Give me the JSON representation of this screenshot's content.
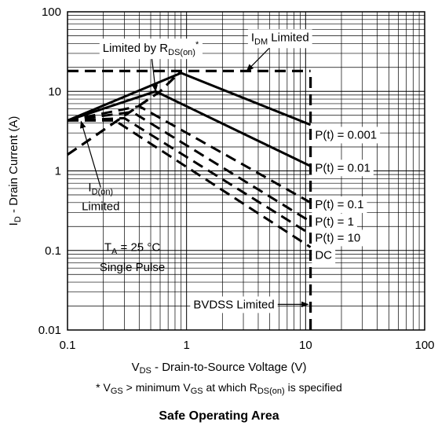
{
  "chart_data": {
    "type": "line",
    "title": "Safe Operating Area",
    "xlabel": {
      "main": "V",
      "sub": "DS",
      "rest": " - Drain-to-Source Voltage (V)"
    },
    "ylabel": {
      "main": "I",
      "sub": "D",
      "rest": " - Drain Current (A)"
    },
    "footnote": {
      "p1": "* V",
      "s1": "GS",
      "p2": " > minimum V",
      "s2": "GS",
      "p3": " at which R",
      "s3": "DS(on)",
      "p4": " is specified"
    },
    "x_scale": "log",
    "y_scale": "log",
    "xlim": [
      0.1,
      100
    ],
    "ylim": [
      0.01,
      100
    ],
    "x_ticks": [
      {
        "value": 0.1,
        "label": "0.1"
      },
      {
        "value": 1,
        "label": "1"
      },
      {
        "value": 10,
        "label": "10"
      },
      {
        "value": 100,
        "label": "100"
      }
    ],
    "y_ticks": [
      {
        "value": 0.01,
        "label": "0.01"
      },
      {
        "value": 0.1,
        "label": "0.1"
      },
      {
        "value": 1,
        "label": "1"
      },
      {
        "value": 10,
        "label": "10"
      },
      {
        "value": 100,
        "label": "100"
      }
    ],
    "grid": true,
    "series": [
      {
        "name": "P(t) = 0.001",
        "style": "solid",
        "points": [
          [
            0.1,
            4.3
          ],
          [
            0.9,
            17
          ],
          [
            11,
            3.8
          ]
        ]
      },
      {
        "name": "P(t) = 0.01",
        "style": "solid",
        "points": [
          [
            0.1,
            4.3
          ],
          [
            0.55,
            10
          ],
          [
            11,
            1.15
          ]
        ]
      },
      {
        "name": "P(t) = 0.1",
        "style": "dashed",
        "points": [
          [
            0.1,
            4.3
          ],
          [
            0.4,
            6.5
          ],
          [
            11,
            0.4
          ]
        ]
      },
      {
        "name": "P(t) = 1",
        "style": "dashed",
        "points": [
          [
            0.1,
            4.3
          ],
          [
            0.35,
            5.5
          ],
          [
            11,
            0.23
          ]
        ]
      },
      {
        "name": "P(t) = 10",
        "style": "dashed",
        "points": [
          [
            0.1,
            4.3
          ],
          [
            0.3,
            4.6
          ],
          [
            11,
            0.16
          ]
        ]
      },
      {
        "name": "DC",
        "style": "dashed",
        "points": [
          [
            0.1,
            4.3
          ],
          [
            0.25,
            4.3
          ],
          [
            11,
            0.11
          ]
        ]
      }
    ],
    "limit_lines": [
      {
        "name": "IDM Limited",
        "style": "dashed",
        "points": [
          [
            0.1,
            18
          ],
          [
            11,
            18
          ]
        ]
      },
      {
        "name": "RDS(on) Limited",
        "style": "dashed",
        "points": [
          [
            0.1,
            1.6
          ],
          [
            0.6,
            10
          ],
          [
            0.9,
            18
          ]
        ]
      },
      {
        "name": "BVDSS Limited",
        "style": "dashed",
        "points": [
          [
            11,
            0.01
          ],
          [
            11,
            18
          ]
        ]
      }
    ],
    "annotations": [
      {
        "id": "rds",
        "parts": [
          [
            "Limited by R",
            "normal"
          ],
          [
            "DS(on)",
            "sub"
          ],
          [
            "*",
            "sup"
          ]
        ],
        "x": 0.5,
        "y": 35,
        "anchor": "middle",
        "box": true,
        "arrow_to": [
          0.55,
          10
        ]
      },
      {
        "id": "idm",
        "parts": [
          [
            "I",
            "normal"
          ],
          [
            "DM",
            "sub"
          ],
          [
            " Limited",
            "normal"
          ]
        ],
        "x": 6.1,
        "y": 48,
        "anchor": "middle",
        "box": true,
        "arrow_to": [
          3.2,
          18
        ]
      },
      {
        "id": "idon1",
        "parts": [
          [
            "I",
            "normal"
          ],
          [
            "D(on)",
            "sub"
          ]
        ],
        "x": 0.19,
        "y": 0.62,
        "anchor": "middle",
        "box": false,
        "arrow_to": [
          0.13,
          4.2
        ]
      },
      {
        "id": "idon2",
        "parts": [
          [
            "Limited",
            "normal"
          ]
        ],
        "x": 0.19,
        "y": 0.36,
        "anchor": "middle",
        "box": false
      },
      {
        "id": "ta1",
        "parts": [
          [
            "T",
            "normal"
          ],
          [
            "A",
            "sub"
          ],
          [
            " = 25 °C",
            "normal"
          ]
        ],
        "x": 0.35,
        "y": 0.11,
        "anchor": "middle",
        "box": false
      },
      {
        "id": "ta2",
        "parts": [
          [
            "Single Pulse",
            "normal"
          ]
        ],
        "x": 0.35,
        "y": 0.062,
        "anchor": "middle",
        "box": false
      },
      {
        "id": "bvdss",
        "parts": [
          [
            "BVDSS Limited",
            "normal"
          ]
        ],
        "x": 2.5,
        "y": 0.021,
        "anchor": "middle",
        "box": true,
        "arrow_to": [
          10.5,
          0.021
        ]
      },
      {
        "id": "lbl001",
        "parts": [
          [
            "P(t) = 0.001",
            "normal"
          ]
        ],
        "x": 12,
        "y": 2.85,
        "anchor": "start",
        "box": true
      },
      {
        "id": "lbl01",
        "parts": [
          [
            "P(t) = 0.01",
            "normal"
          ]
        ],
        "x": 12,
        "y": 1.1,
        "anchor": "start",
        "box": true
      },
      {
        "id": "lbl1",
        "parts": [
          [
            "P(t) = 0.1",
            "normal"
          ]
        ],
        "x": 12,
        "y": 0.38,
        "anchor": "start",
        "box": true
      },
      {
        "id": "lbl10",
        "parts": [
          [
            "P(t) = 1",
            "normal"
          ]
        ],
        "x": 12,
        "y": 0.23,
        "anchor": "start",
        "box": true
      },
      {
        "id": "lbl100",
        "parts": [
          [
            "P(t) = 10",
            "normal"
          ]
        ],
        "x": 12,
        "y": 0.145,
        "anchor": "start",
        "box": true
      },
      {
        "id": "lbldc",
        "parts": [
          [
            "DC",
            "normal"
          ]
        ],
        "x": 12,
        "y": 0.088,
        "anchor": "start",
        "box": true
      }
    ]
  }
}
